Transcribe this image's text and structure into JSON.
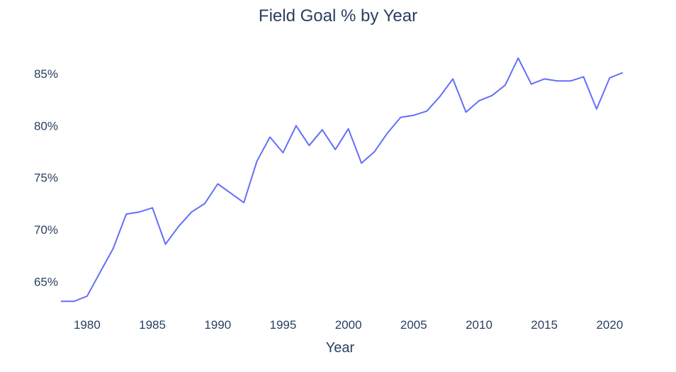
{
  "chart_data": {
    "type": "line",
    "title": "Field Goal % by Year",
    "xlabel": "Year",
    "ylabel": "",
    "x": [
      1978,
      1979,
      1980,
      1981,
      1982,
      1983,
      1984,
      1985,
      1986,
      1987,
      1988,
      1989,
      1990,
      1991,
      1992,
      1993,
      1994,
      1995,
      1996,
      1997,
      1998,
      1999,
      2000,
      2001,
      2002,
      2003,
      2004,
      2005,
      2006,
      2007,
      2008,
      2009,
      2010,
      2011,
      2012,
      2013,
      2014,
      2015,
      2016,
      2017,
      2018,
      2019,
      2020,
      2021
    ],
    "series": [
      {
        "color": "#636efa",
        "values": [
          0.631,
          0.631,
          0.636,
          0.659,
          0.682,
          0.715,
          0.717,
          0.721,
          0.686,
          0.703,
          0.717,
          0.725,
          0.744,
          0.735,
          0.726,
          0.766,
          0.789,
          0.774,
          0.8,
          0.781,
          0.796,
          0.777,
          0.797,
          0.764,
          0.775,
          0.793,
          0.808,
          0.81,
          0.814,
          0.828,
          0.845,
          0.813,
          0.824,
          0.829,
          0.839,
          0.865,
          0.84,
          0.845,
          0.843,
          0.843,
          0.847,
          0.816,
          0.846,
          0.851
        ]
      }
    ],
    "xlim": [
      1978,
      2022.8
    ],
    "ylim": [
      0.621,
      0.88
    ],
    "xticks": [
      1980,
      1985,
      1990,
      1995,
      2000,
      2005,
      2010,
      2015,
      2020
    ],
    "xtick_labels": [
      "1980",
      "1985",
      "1990",
      "1995",
      "2000",
      "2005",
      "2010",
      "2015",
      "2020"
    ],
    "yticks": [
      0.65,
      0.7,
      0.75,
      0.8,
      0.85
    ],
    "ytick_labels": [
      "65%",
      "70%",
      "75%",
      "80%",
      "85%"
    ],
    "grid": false,
    "legend": "none"
  }
}
